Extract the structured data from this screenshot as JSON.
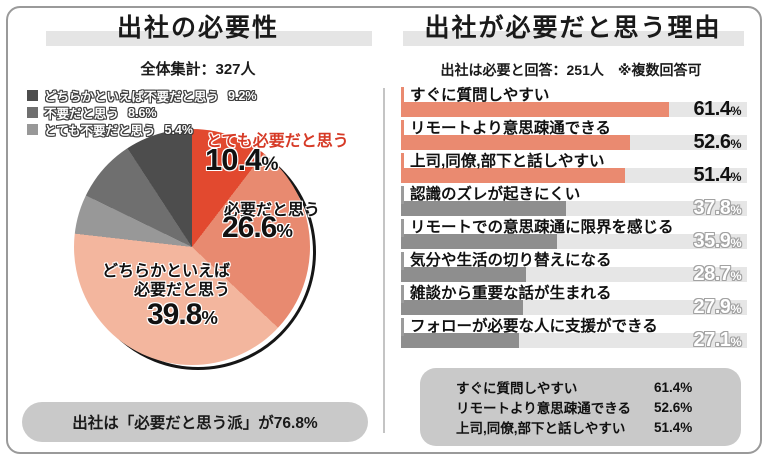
{
  "units": {
    "percent": "%"
  },
  "left_panel": {
    "title": "出社の必要性",
    "subtitle": "全体集計：327人",
    "legend": [
      {
        "label": "どちらかといえば不要だと思う",
        "pct": "9.2%",
        "color": "#4d4d4d"
      },
      {
        "label": "不要だと思う",
        "pct": "8.6%",
        "color": "#6f6f6f"
      },
      {
        "label": "とても不要だと思う",
        "pct": "5.4%",
        "color": "#989898"
      }
    ],
    "callout": "出社は「必要だと思う派」が76.8%"
  },
  "right_panel": {
    "title": "出社が必要だと思う理由",
    "subtitle": "出社は必要と回答：251人　※複数回答可",
    "summary": [
      {
        "label": "すぐに質問しやすい",
        "value": "61.4%"
      },
      {
        "label": "リモートより意思疎通できる",
        "value": "52.6%"
      },
      {
        "label": "上司,同僚,部下と話しやすい",
        "value": "51.4%"
      }
    ]
  },
  "chart_data": [
    {
      "type": "pie",
      "title": "出社の必要性",
      "subtitle": "全体集計：327人",
      "total_respondents": 327,
      "slices": [
        {
          "label": "とても必要だと思う",
          "value": 10.4,
          "color": "#e2492f"
        },
        {
          "label": "必要だと思う",
          "value": 26.6,
          "color": "#e88a70"
        },
        {
          "label": "どちらかといえば必要だと思う",
          "label_lines": [
            "どちらかといえば",
            "必要だと思う"
          ],
          "value": 39.8,
          "color": "#f3b69e"
        },
        {
          "label": "とても不要だと思う",
          "value": 5.4,
          "color": "#989898"
        },
        {
          "label": "不要だと思う",
          "value": 8.6,
          "color": "#6f6f6f"
        },
        {
          "label": "どちらかといえば不要だと思う",
          "value": 9.2,
          "color": "#4d4d4d"
        }
      ],
      "annotation": "出社は「必要だと思う派」が76.8%",
      "start_angle_deg": 0,
      "direction": "clockwise"
    },
    {
      "type": "bar",
      "title": "出社が必要だと思う理由",
      "subtitle": "出社は必要と回答：251人　※複数回答可",
      "respondents": 251,
      "categories": [
        "すぐに質問しやすい",
        "リモートより意思疎通できる",
        "上司,同僚,部下と話しやすい",
        "認識のズレが起きにくい",
        "リモートでの意思疎通に限界を感じる",
        "気分や生活の切り替えになる",
        "雑談から重要な話が生まれる",
        "フォローが必要な人に支援ができる"
      ],
      "values": [
        61.4,
        52.6,
        51.4,
        37.8,
        35.9,
        28.7,
        27.9,
        27.1
      ],
      "xlim": [
        0,
        100
      ],
      "highlight_count": 3,
      "bar_scale": 1.26,
      "colors": {
        "highlight": "#ea8a70",
        "normal": "#8e8e8e",
        "track": "#e6e6e6",
        "tick_normal": "#9b9b9b"
      }
    }
  ]
}
